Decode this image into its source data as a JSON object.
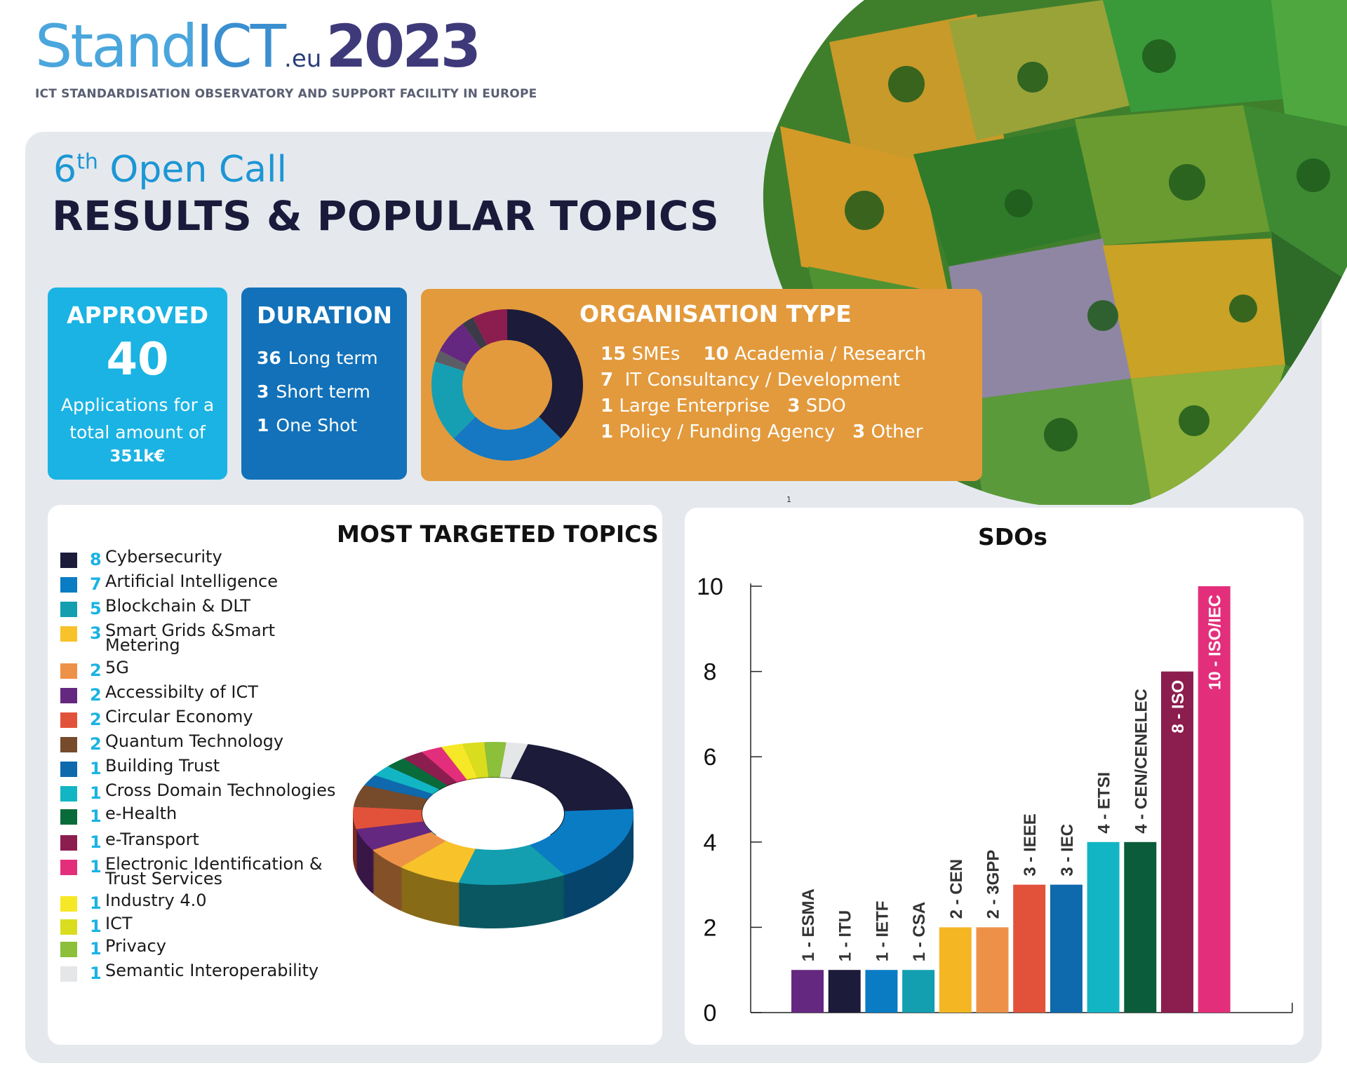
{
  "logo": {
    "stand": "Stand",
    "ict": "ICT",
    "eu": ".eu",
    "year": "2023",
    "subtitle": "ICT STANDARDISATION OBSERVATORY AND SUPPORT FACILITY IN EUROPE"
  },
  "header": {
    "call_number": "6",
    "call_sup": "th",
    "call_rest": " Open Call",
    "title": "RESULTS & POPULAR TOPICS"
  },
  "approved": {
    "title": "APPROVED",
    "count": "40",
    "text_line1": "Applications for a",
    "text_line2": "total amount of",
    "amount": "351k€"
  },
  "duration": {
    "title": "DURATION",
    "items": [
      {
        "num": "36",
        "label": "Long term"
      },
      {
        "num": "3",
        "label": "Short term"
      },
      {
        "num": "1",
        "label": "One Shot"
      }
    ]
  },
  "organisation": {
    "title": "ORGANISATION TYPE",
    "lines": [
      [
        {
          "num": "15",
          "label": "SMEs"
        },
        {
          "num": "10",
          "label": "Academia / Research"
        }
      ],
      [
        {
          "num": "7",
          "label": "IT Consultancy / Development"
        }
      ],
      [
        {
          "num": "1",
          "label": "Large Enterprise"
        },
        {
          "num": "3",
          "label": "SDO"
        }
      ],
      [
        {
          "num": "1",
          "label": "Policy / Funding Agency"
        },
        {
          "num": "3",
          "label": "Other"
        }
      ]
    ]
  },
  "stray_label": "1",
  "topics": {
    "title": "MOST TARGETED TOPICS",
    "items": [
      {
        "num": "8",
        "label": "Cybersecurity",
        "color": "#1c1b3a"
      },
      {
        "num": "7",
        "label": "Artificial Intelligence",
        "color": "#0a7cc4"
      },
      {
        "num": "5",
        "label": "Blockchain & DLT",
        "color": "#139fb0"
      },
      {
        "num": "3",
        "label": "Smart Grids &Smart",
        "label2": "Metering",
        "color": "#f7c22a"
      },
      {
        "num": "2",
        "label": "5G",
        "color": "#ee9148"
      },
      {
        "num": "2",
        "label": "Accessibilty of ICT",
        "color": "#652880"
      },
      {
        "num": "2",
        "label": "Circular Economy",
        "color": "#e2523a"
      },
      {
        "num": "2",
        "label": "Quantum Technology",
        "color": "#764b2c"
      },
      {
        "num": "1",
        "label": "Building Trust",
        "color": "#0f69ad"
      },
      {
        "num": "1",
        "label": "Cross Domain Technologies",
        "color": "#12b5c4"
      },
      {
        "num": "1",
        "label": "e-Health",
        "color": "#0a6b3a"
      },
      {
        "num": "1",
        "label": "e-Transport",
        "color": "#8c1d4f"
      },
      {
        "num": "1",
        "label": "Electronic Identification &",
        "label2": "Trust Services",
        "color": "#e32f7b"
      },
      {
        "num": "1",
        "label": "Industry 4.0",
        "color": "#f6e826"
      },
      {
        "num": "1",
        "label": "ICT",
        "color": "#d9dd1e"
      },
      {
        "num": "1",
        "label": "Privacy",
        "color": "#8cbf3a"
      },
      {
        "num": "1",
        "label": "Semantic Interoperability",
        "color": "#e5e6e8"
      }
    ]
  },
  "chart_data": [
    {
      "type": "pie",
      "title": "ORGANISATION TYPE",
      "categories": [
        "SMEs",
        "Academia / Research",
        "IT Consultancy / Development",
        "Large Enterprise",
        "SDO",
        "Policy / Funding Agency",
        "Other"
      ],
      "values": [
        15,
        10,
        7,
        1,
        3,
        1,
        3
      ],
      "colors": [
        "#1c1b3a",
        "#1678c2",
        "#169fb2",
        "#5c5c66",
        "#652880",
        "#3a3a48",
        "#8c1d4f"
      ]
    },
    {
      "type": "pie",
      "title": "MOST TARGETED TOPICS",
      "categories": [
        "Cybersecurity",
        "Artificial Intelligence",
        "Blockchain & DLT",
        "Smart Grids &Smart Metering",
        "5G",
        "Accessibilty of ICT",
        "Circular Economy",
        "Quantum Technology",
        "Building Trust",
        "Cross Domain Technologies",
        "e-Health",
        "e-Transport",
        "Electronic Identification & Trust Services",
        "Industry 4.0",
        "ICT",
        "Privacy",
        "Semantic Interoperability"
      ],
      "values": [
        8,
        7,
        5,
        3,
        2,
        2,
        2,
        2,
        1,
        1,
        1,
        1,
        1,
        1,
        1,
        1,
        1
      ]
    },
    {
      "type": "bar",
      "title": "SDOs",
      "categories": [
        "1 - ESMA",
        "1 - ITU",
        "1 - IETF",
        "1 - CSA",
        "2 - CEN",
        "2 - 3GPP",
        "3 - IEEE",
        "3 - IEC",
        "4 - ETSI",
        "4 - CEN/CENELEC",
        "8 - ISO",
        "10 - ISO/IEC"
      ],
      "values": [
        1,
        1,
        1,
        1,
        2,
        2,
        3,
        3,
        4,
        4,
        8,
        10
      ],
      "colors": [
        "#652880",
        "#1c1b3a",
        "#0a7cc4",
        "#139fb0",
        "#f4b622",
        "#ee9148",
        "#e2523a",
        "#0f69ad",
        "#12b5c4",
        "#0a5c3a",
        "#8c1d4f",
        "#e32f7b"
      ],
      "yticks": [
        "0",
        "2",
        "4",
        "6",
        "8",
        "10"
      ],
      "ylim": [
        0,
        10
      ]
    }
  ]
}
